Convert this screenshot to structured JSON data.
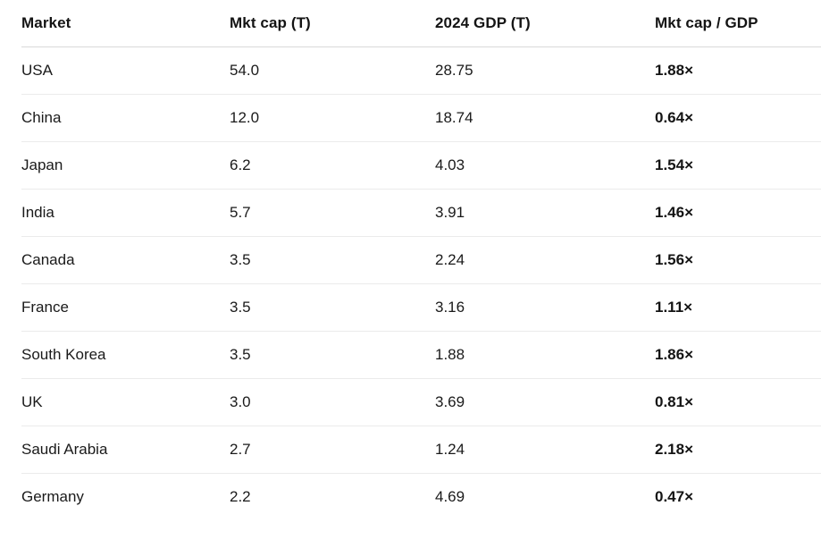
{
  "table": {
    "columns": [
      {
        "label": "Market"
      },
      {
        "label": "Mkt cap (T)"
      },
      {
        "label": "2024 GDP (T)"
      },
      {
        "label": "Mkt cap / GDP"
      }
    ],
    "rows": [
      {
        "market": "USA",
        "mkt_cap": "54.0",
        "gdp": "28.75",
        "ratio": "1.88×"
      },
      {
        "market": "China",
        "mkt_cap": "12.0",
        "gdp": "18.74",
        "ratio": "0.64×"
      },
      {
        "market": "Japan",
        "mkt_cap": "6.2",
        "gdp": "4.03",
        "ratio": "1.54×"
      },
      {
        "market": "India",
        "mkt_cap": "5.7",
        "gdp": "3.91",
        "ratio": "1.46×"
      },
      {
        "market": "Canada",
        "mkt_cap": "3.5",
        "gdp": "2.24",
        "ratio": "1.56×"
      },
      {
        "market": "France",
        "mkt_cap": "3.5",
        "gdp": "3.16",
        "ratio": "1.11×"
      },
      {
        "market": "South Korea",
        "mkt_cap": "3.5",
        "gdp": "1.88",
        "ratio": "1.86×"
      },
      {
        "market": "UK",
        "mkt_cap": "3.0",
        "gdp": "3.69",
        "ratio": "0.81×"
      },
      {
        "market": "Saudi Arabia",
        "mkt_cap": "2.7",
        "gdp": "1.24",
        "ratio": "2.18×"
      },
      {
        "market": "Germany",
        "mkt_cap": "2.2",
        "gdp": "4.69",
        "ratio": "0.47×"
      }
    ]
  },
  "colors": {
    "background": "#ffffff",
    "text": "#141414",
    "header_border": "#d9d9d9",
    "row_border": "#ebebeb"
  },
  "chart_data": {
    "type": "table",
    "columns": [
      "Market",
      "Mkt cap (T)",
      "2024 GDP (T)",
      "Mkt cap / GDP"
    ],
    "rows": [
      [
        "USA",
        54.0,
        28.75,
        "1.88×"
      ],
      [
        "China",
        12.0,
        18.74,
        "0.64×"
      ],
      [
        "Japan",
        6.2,
        4.03,
        "1.54×"
      ],
      [
        "India",
        5.7,
        3.91,
        "1.46×"
      ],
      [
        "Canada",
        3.5,
        2.24,
        "1.56×"
      ],
      [
        "France",
        3.5,
        3.16,
        "1.11×"
      ],
      [
        "South Korea",
        3.5,
        1.88,
        "1.86×"
      ],
      [
        "UK",
        3.0,
        3.69,
        "0.81×"
      ],
      [
        "Saudi Arabia",
        2.7,
        1.24,
        "2.18×"
      ],
      [
        "Germany",
        2.2,
        4.69,
        "0.47×"
      ]
    ],
    "notes": "Markets table: market capitalization (trillions) vs 2024 GDP (trillions) and their ratio; ratio column rendered bold"
  }
}
